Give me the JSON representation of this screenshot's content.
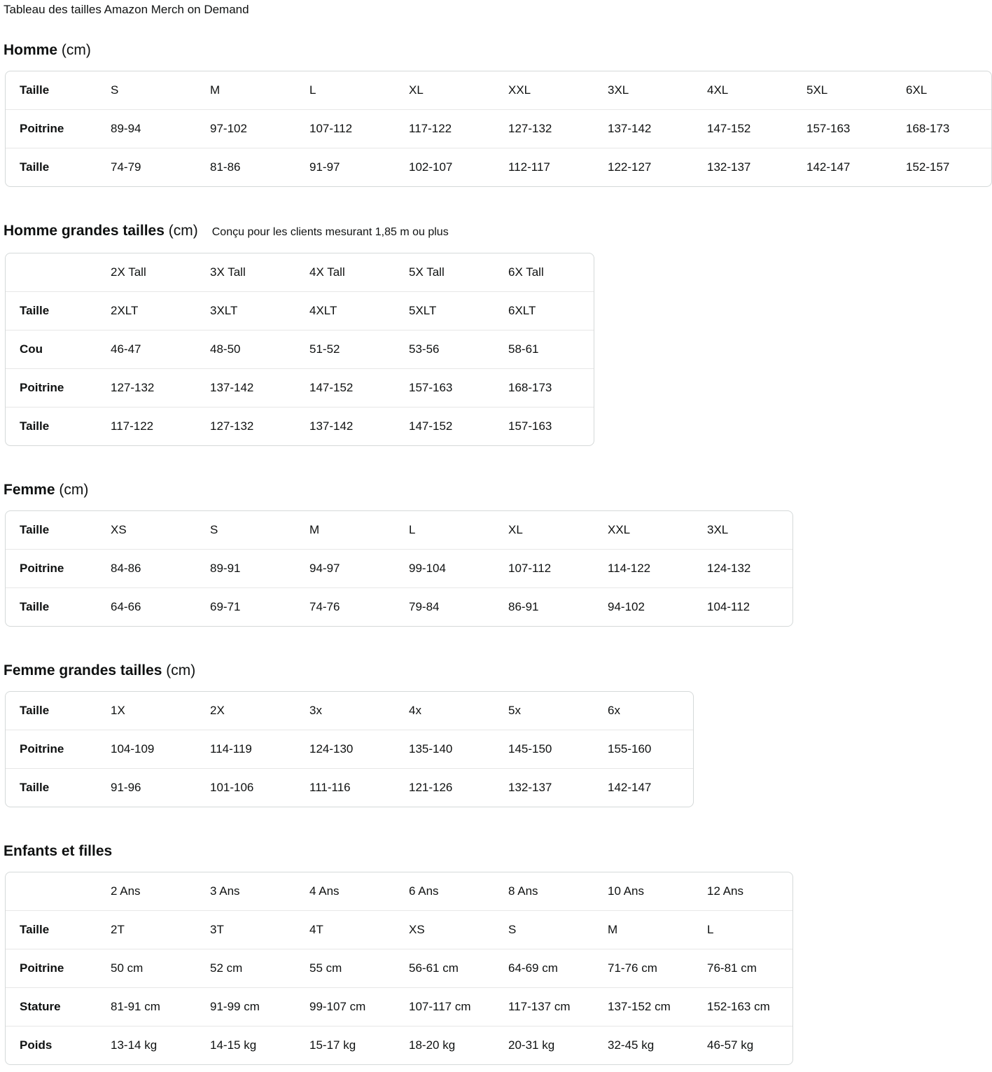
{
  "page_title": "Tableau des tailles Amazon Merch on Demand",
  "colors": {
    "text": "#0f1111",
    "table_border": "#d5d9d9",
    "row_divider": "#e7e7e7",
    "background": "#ffffff"
  },
  "sections": [
    {
      "heading": "Homme",
      "unit": "(cm)",
      "note": "",
      "table": {
        "rows": [
          {
            "label": "Taille",
            "cells": [
              "S",
              "M",
              "L",
              "XL",
              "XXL",
              "3XL",
              "4XL",
              "5XL",
              "6XL"
            ]
          },
          {
            "label": "Poitrine",
            "cells": [
              "89-94",
              "97-102",
              "107-112",
              "117-122",
              "127-132",
              "137-142",
              "147-152",
              "157-163",
              "168-173"
            ]
          },
          {
            "label": "Taille",
            "cells": [
              "74-79",
              "81-86",
              "91-97",
              "102-107",
              "112-117",
              "122-127",
              "132-137",
              "142-147",
              "152-157"
            ]
          }
        ]
      }
    },
    {
      "heading": "Homme grandes tailles",
      "unit": "(cm)",
      "note": "Conçu pour les clients mesurant 1,85 m ou plus",
      "table": {
        "rows": [
          {
            "label": "",
            "cells": [
              "2X Tall",
              "3X Tall",
              "4X Tall",
              "5X Tall",
              "6X Tall"
            ]
          },
          {
            "label": "Taille",
            "cells": [
              "2XLT",
              "3XLT",
              "4XLT",
              "5XLT",
              "6XLT"
            ]
          },
          {
            "label": "Cou",
            "cells": [
              "46-47",
              "48-50",
              "51-52",
              "53-56",
              "58-61"
            ]
          },
          {
            "label": "Poitrine",
            "cells": [
              "127-132",
              "137-142",
              "147-152",
              "157-163",
              "168-173"
            ]
          },
          {
            "label": "Taille",
            "cells": [
              "117-122",
              "127-132",
              "137-142",
              "147-152",
              "157-163"
            ]
          }
        ]
      }
    },
    {
      "heading": "Femme",
      "unit": "(cm)",
      "note": "",
      "table": {
        "rows": [
          {
            "label": "Taille",
            "cells": [
              "XS",
              "S",
              "M",
              "L",
              "XL",
              "XXL",
              "3XL"
            ]
          },
          {
            "label": "Poitrine",
            "cells": [
              "84-86",
              "89-91",
              "94-97",
              "99-104",
              "107-112",
              "114-122",
              "124-132"
            ]
          },
          {
            "label": "Taille",
            "cells": [
              "64-66",
              "69-71",
              "74-76",
              "79-84",
              "86-91",
              "94-102",
              "104-112"
            ]
          }
        ]
      }
    },
    {
      "heading": "Femme grandes tailles",
      "unit": "(cm)",
      "note": "",
      "table": {
        "rows": [
          {
            "label": "Taille",
            "cells": [
              "1X",
              "2X",
              "3x",
              "4x",
              "5x",
              "6x"
            ]
          },
          {
            "label": "Poitrine",
            "cells": [
              "104-109",
              "114-119",
              "124-130",
              "135-140",
              "145-150",
              "155-160"
            ]
          },
          {
            "label": "Taille",
            "cells": [
              "91-96",
              "101-106",
              "111-116",
              "121-126",
              "132-137",
              "142-147"
            ]
          }
        ]
      }
    },
    {
      "heading": "Enfants et filles",
      "unit": "",
      "note": "",
      "table": {
        "rows": [
          {
            "label": "",
            "cells": [
              "2 Ans",
              "3 Ans",
              "4 Ans",
              "6 Ans",
              "8 Ans",
              "10 Ans",
              "12 Ans"
            ]
          },
          {
            "label": "Taille",
            "cells": [
              "2T",
              "3T",
              "4T",
              "XS",
              "S",
              "M",
              "L"
            ]
          },
          {
            "label": "Poitrine",
            "cells": [
              "50 cm",
              "52 cm",
              "55 cm",
              "56-61 cm",
              "64-69 cm",
              "71-76 cm",
              "76-81 cm"
            ]
          },
          {
            "label": "Stature",
            "cells": [
              "81-91 cm",
              "91-99 cm",
              "99-107 cm",
              "107-117 cm",
              "117-137 cm",
              "137-152 cm",
              "152-163 cm"
            ]
          },
          {
            "label": "Poids",
            "cells": [
              "13-14 kg",
              "14-15 kg",
              "15-17 kg",
              "18-20 kg",
              "20-31 kg",
              "32-45 kg",
              "46-57 kg"
            ]
          }
        ]
      }
    }
  ]
}
